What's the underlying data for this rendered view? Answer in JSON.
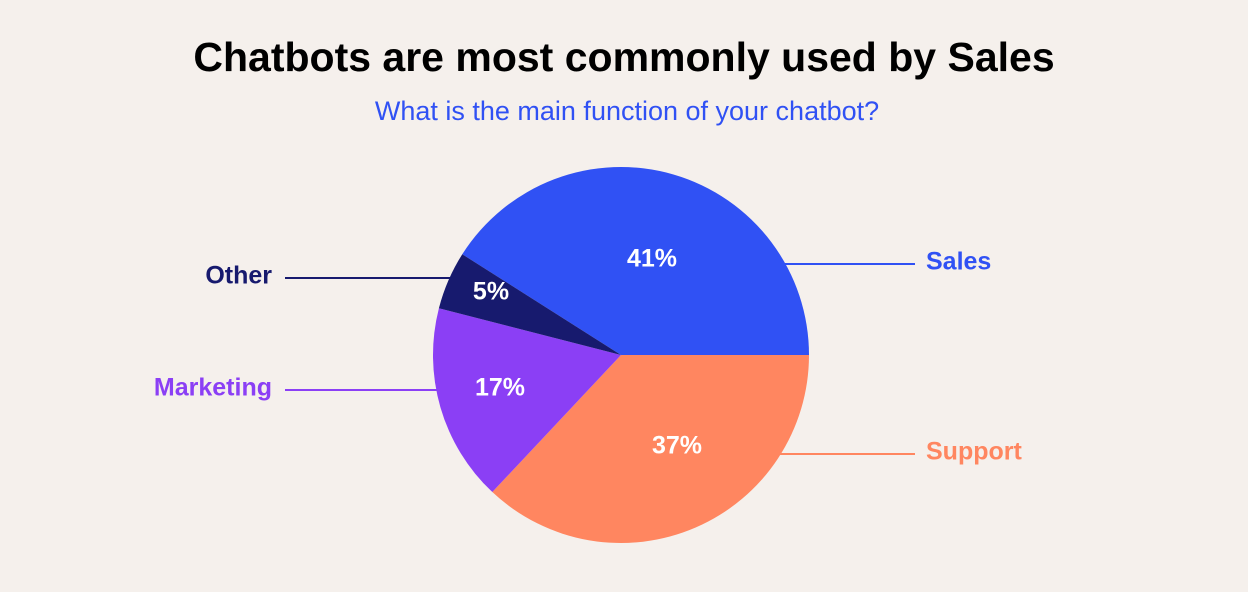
{
  "chart_data": {
    "type": "pie",
    "title": "Chatbots are most commonly used by Sales",
    "subtitle": "What is the main function of your chatbot?",
    "categories": [
      "Sales",
      "Support",
      "Marketing",
      "Other"
    ],
    "values": [
      41,
      37,
      17,
      5
    ],
    "value_labels": [
      "41%",
      "37%",
      "17%",
      "5%"
    ],
    "colors": [
      "#3051f4",
      "#ff8660",
      "#8b3ff5",
      "#171a6e"
    ]
  }
}
